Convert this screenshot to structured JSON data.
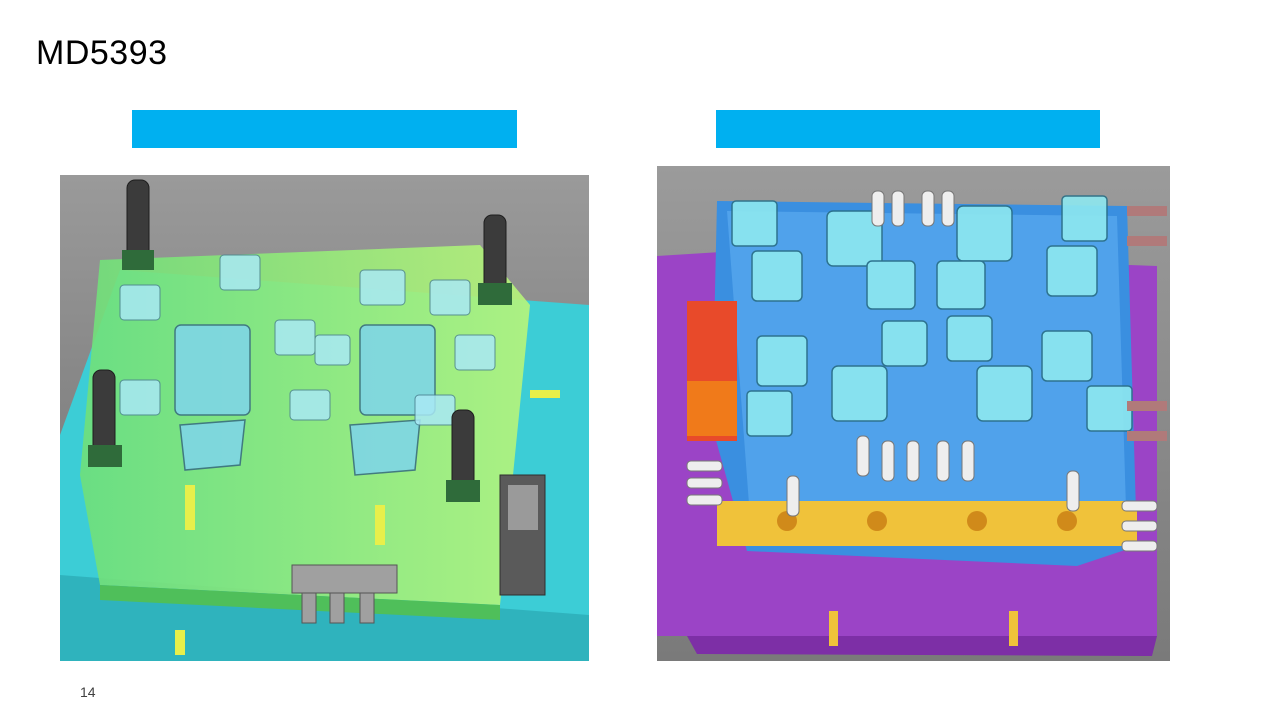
{
  "slide": {
    "title": "MD5393",
    "page_number": "14",
    "banner_color": "#00b0f0"
  },
  "images": {
    "left": {
      "description_icon": "mold-cad-render-green"
    },
    "right": {
      "description_icon": "mold-cad-render-blue-purple"
    }
  }
}
